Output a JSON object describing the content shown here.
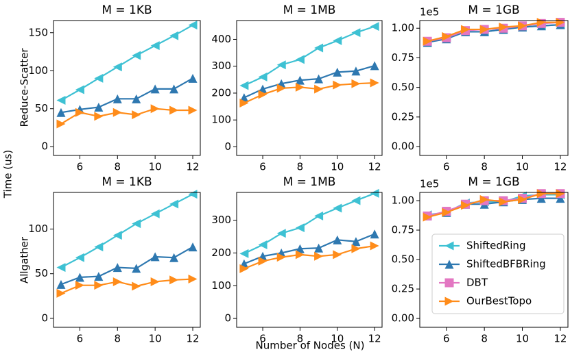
{
  "ylabel": "Time (us)",
  "xlabel": "Number of Nodes (N)",
  "row_labels": [
    "Reduce-Scatter",
    "Allgather"
  ],
  "chart_data": [
    {
      "type": "line",
      "title": "M = 1KB",
      "x": [
        5,
        6,
        7,
        8,
        9,
        10,
        11,
        12
      ],
      "xlim": [
        4.6,
        12.4
      ],
      "xticks": [
        6,
        8,
        10,
        12
      ],
      "ylim": [
        -11.5,
        166
      ],
      "yticks": [
        0,
        50,
        100,
        150
      ],
      "series": [
        {
          "name": "ShiftedRing",
          "color": "#3ec1d3",
          "marker": "left",
          "values": [
            61,
            75,
            90,
            105,
            120,
            133,
            146,
            160
          ]
        },
        {
          "name": "ShiftedBFBRing",
          "color": "#2e78b0",
          "marker": "up",
          "values": [
            45,
            49,
            52,
            63,
            63,
            76,
            76,
            90
          ]
        },
        {
          "name": "OurBestTopo",
          "color": "#ff8c1a",
          "marker": "right",
          "values": [
            30,
            45,
            40,
            45,
            42,
            50,
            48,
            48
          ]
        }
      ]
    },
    {
      "type": "line",
      "title": "M = 1MB",
      "x": [
        5,
        6,
        7,
        8,
        9,
        10,
        11,
        12
      ],
      "xlim": [
        4.6,
        12.4
      ],
      "xticks": [
        6,
        8,
        10,
        12
      ],
      "ylim": [
        -32,
        470
      ],
      "yticks": [
        0,
        100,
        200,
        300,
        400
      ],
      "series": [
        {
          "name": "ShiftedRing",
          "color": "#3ec1d3",
          "marker": "left",
          "values": [
            228,
            260,
            305,
            325,
            368,
            395,
            425,
            448
          ]
        },
        {
          "name": "ShiftedBFBRing",
          "color": "#2e78b0",
          "marker": "up",
          "values": [
            183,
            215,
            235,
            248,
            253,
            278,
            282,
            302
          ]
        },
        {
          "name": "OurBestTopo",
          "color": "#ff8c1a",
          "marker": "right",
          "values": [
            163,
            195,
            218,
            222,
            215,
            230,
            235,
            238
          ]
        }
      ]
    },
    {
      "type": "line",
      "title": "M = 1GB",
      "offset_label": "1e5",
      "x": [
        5,
        6,
        7,
        8,
        9,
        10,
        11,
        12
      ],
      "xlim": [
        4.6,
        12.4
      ],
      "xticks": [
        6,
        8,
        10,
        12
      ],
      "ylim": [
        -0.075,
        1.065
      ],
      "yticks": [
        {
          "value": 0,
          "label": "0.00"
        },
        {
          "value": 0.25,
          "label": "0.25"
        },
        {
          "value": 0.5,
          "label": "0.50"
        },
        {
          "value": 0.75,
          "label": "0.75"
        },
        {
          "value": 1,
          "label": "1.00"
        }
      ],
      "series": [
        {
          "name": "ShiftedRing",
          "color": "#3ec1d3",
          "marker": "left",
          "values": [
            0.88,
            0.92,
            0.97,
            0.97,
            0.99,
            1.01,
            1.02,
            1.03
          ]
        },
        {
          "name": "ShiftedBFBRing",
          "color": "#2e78b0",
          "marker": "up",
          "values": [
            0.88,
            0.91,
            0.97,
            0.97,
            0.99,
            1.01,
            1.02,
            1.03
          ]
        },
        {
          "name": "DBT",
          "color": "#e377c2",
          "marker": "square",
          "values": [
            0.89,
            0.92,
            0.98,
            0.99,
            1.0,
            1.02,
            1.04,
            1.05
          ]
        },
        {
          "name": "OurBestTopo",
          "color": "#ff8c1a",
          "marker": "right",
          "values": [
            0.89,
            0.93,
            0.99,
            0.99,
            1.01,
            1.02,
            1.05,
            1.05
          ]
        }
      ]
    },
    {
      "type": "line",
      "title": "M = 1KB",
      "x": [
        5,
        6,
        7,
        8,
        9,
        10,
        11,
        12
      ],
      "xlim": [
        4.6,
        12.4
      ],
      "xticks": [
        6,
        8,
        10,
        12
      ],
      "ylim": [
        -10,
        141
      ],
      "yticks": [
        0,
        50,
        100
      ],
      "series": [
        {
          "name": "ShiftedRing",
          "color": "#3ec1d3",
          "marker": "left",
          "values": [
            57,
            68,
            80,
            93,
            106,
            117,
            128,
            139
          ]
        },
        {
          "name": "ShiftedBFBRing",
          "color": "#2e78b0",
          "marker": "up",
          "values": [
            38,
            46,
            47,
            57,
            56,
            69,
            68,
            80
          ]
        },
        {
          "name": "OurBestTopo",
          "color": "#ff8c1a",
          "marker": "right",
          "values": [
            28,
            37,
            37,
            41,
            36,
            41,
            43,
            44
          ]
        }
      ]
    },
    {
      "type": "line",
      "title": "M = 1MB",
      "x": [
        5,
        6,
        7,
        8,
        9,
        10,
        11,
        12
      ],
      "xlim": [
        4.6,
        12.4
      ],
      "xticks": [
        6,
        8,
        10,
        12
      ],
      "ylim": [
        -27,
        385
      ],
      "yticks": [
        0,
        100,
        200,
        300
      ],
      "series": [
        {
          "name": "ShiftedRing",
          "color": "#3ec1d3",
          "marker": "left",
          "values": [
            198,
            225,
            260,
            277,
            313,
            337,
            360,
            382
          ]
        },
        {
          "name": "ShiftedBFBRing",
          "color": "#2e78b0",
          "marker": "up",
          "values": [
            167,
            190,
            200,
            213,
            215,
            240,
            235,
            258
          ]
        },
        {
          "name": "OurBestTopo",
          "color": "#ff8c1a",
          "marker": "right",
          "values": [
            152,
            175,
            187,
            195,
            190,
            195,
            213,
            222
          ]
        }
      ]
    },
    {
      "type": "line",
      "title": "M = 1GB",
      "offset_label": "1e5",
      "legend": "lower right",
      "x": [
        5,
        6,
        7,
        8,
        9,
        10,
        11,
        12
      ],
      "xlim": [
        4.6,
        12.4
      ],
      "xticks": [
        6,
        8,
        10,
        12
      ],
      "ylim": [
        -0.075,
        1.07
      ],
      "yticks": [
        {
          "value": 0,
          "label": "0.00"
        },
        {
          "value": 0.25,
          "label": "0.25"
        },
        {
          "value": 0.5,
          "label": "0.50"
        },
        {
          "value": 0.75,
          "label": "0.75"
        },
        {
          "value": 1,
          "label": "1.00"
        }
      ],
      "series": [
        {
          "name": "ShiftedRing",
          "color": "#3ec1d3",
          "marker": "left",
          "values": [
            0.88,
            0.9,
            0.98,
            0.99,
            0.99,
            1.04,
            1.05,
            1.05
          ]
        },
        {
          "name": "ShiftedBFBRing",
          "color": "#2e78b0",
          "marker": "up",
          "values": [
            0.87,
            0.9,
            0.97,
            0.97,
            0.99,
            1.01,
            1.02,
            1.02
          ]
        },
        {
          "name": "DBT",
          "color": "#e377c2",
          "marker": "square",
          "values": [
            0.87,
            0.91,
            0.97,
            1.0,
            1.0,
            1.02,
            1.06,
            1.06
          ]
        },
        {
          "name": "OurBestTopo",
          "color": "#ff8c1a",
          "marker": "right",
          "values": [
            0.86,
            0.9,
            0.96,
            1.01,
            0.99,
            1.01,
            1.06,
            1.06
          ]
        }
      ]
    }
  ]
}
